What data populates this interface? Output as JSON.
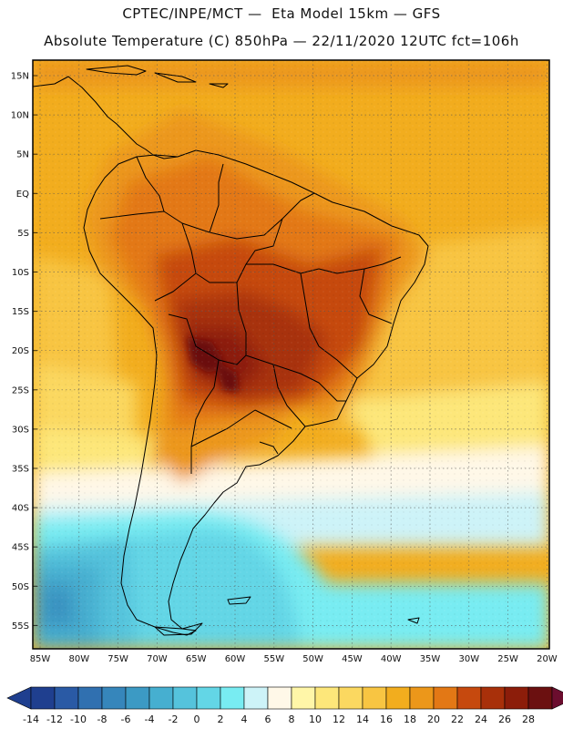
{
  "header": {
    "line1": "CPTEC/INPE/MCT —  Eta Model 15km — GFS",
    "line2": "Absolute Temperature (C) 850hPa — 22/11/2020 12UTC fct=106h"
  },
  "map": {
    "lat_labels": [
      "15N",
      "10N",
      "5N",
      "EQ",
      "5S",
      "10S",
      "15S",
      "20S",
      "25S",
      "30S",
      "35S",
      "40S",
      "45S",
      "50S",
      "55S"
    ],
    "lon_labels": [
      "85W",
      "80W",
      "75W",
      "70W",
      "65W",
      "60W",
      "55W",
      "50W",
      "45W",
      "40W",
      "35W",
      "30W",
      "25W",
      "20W"
    ]
  },
  "legend": {
    "values": [
      "-14",
      "-12",
      "-10",
      "-8",
      "-6",
      "-4",
      "-2",
      "0",
      "2",
      "4",
      "6",
      "8",
      "10",
      "12",
      "14",
      "16",
      "18",
      "20",
      "22",
      "24",
      "26",
      "28"
    ],
    "colors": [
      "#1f3f8f",
      "#2a5aa5",
      "#3070b0",
      "#3686bb",
      "#3c9ac4",
      "#46afd0",
      "#55c3dc",
      "#63d6e6",
      "#78ecf2",
      "#cdf3f8",
      "#fff8e8",
      "#fff6a8",
      "#fde77a",
      "#fbd860",
      "#f8c542",
      "#f2ad1e",
      "#ec971a",
      "#e37815",
      "#c6490e",
      "#a8300a",
      "#8c1d0a",
      "#6b1010",
      "#6b0d2e"
    ]
  }
}
